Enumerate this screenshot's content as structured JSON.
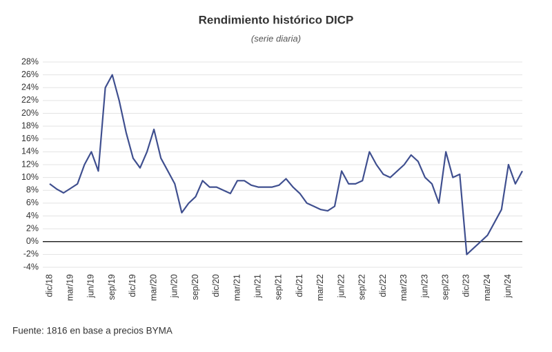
{
  "chart_data": {
    "type": "line",
    "title": "Rendimiento histórico DICP",
    "subtitle": "(serie diaria)",
    "source": "Fuente: 1816 en base a precios BYMA",
    "categories": [
      "dic/18",
      null,
      null,
      "mar/19",
      null,
      null,
      "jun/19",
      null,
      null,
      "sep/19",
      null,
      null,
      "dic/19",
      null,
      null,
      "mar/20",
      null,
      null,
      "jun/20",
      null,
      null,
      "sep/20",
      null,
      null,
      "dic/20",
      null,
      null,
      "mar/21",
      null,
      null,
      "jun/21",
      null,
      null,
      "sep/21",
      null,
      null,
      "dic/21",
      null,
      null,
      "mar/22",
      null,
      null,
      "jun/22",
      null,
      null,
      "sep/22",
      null,
      null,
      "dic/22",
      null,
      null,
      "mar/23",
      null,
      null,
      "jun/23",
      null,
      null,
      "sep/23",
      null,
      null,
      "dic/23",
      null,
      null,
      "mar/24",
      null,
      null,
      "jun/24",
      null,
      null
    ],
    "series": [
      {
        "name": "DICP",
        "color": "#3f4f8f",
        "values": [
          9,
          8.2,
          7.6,
          8.3,
          9,
          12,
          14,
          11,
          24,
          26,
          22,
          17,
          13,
          11.5,
          14,
          17.5,
          13,
          11,
          9,
          4.5,
          6,
          7,
          9.5,
          8.5,
          8.5,
          8,
          7.5,
          9.5,
          9.5,
          8.8,
          8.5,
          8.5,
          8.5,
          8.8,
          9.8,
          8.5,
          7.5,
          6,
          5.5,
          5,
          4.8,
          5.5,
          11,
          9,
          9,
          9.5,
          14,
          12,
          10.5,
          10,
          11,
          12,
          13.5,
          12.5,
          10,
          9,
          6,
          14,
          10,
          10.5,
          -2,
          -1,
          0,
          1,
          3,
          5,
          12,
          9,
          11
        ]
      }
    ],
    "ylim": [
      -4,
      28
    ],
    "yticks": [
      {
        "value": -4,
        "label": "-4%"
      },
      {
        "value": -2,
        "label": "-2%"
      },
      {
        "value": 0,
        "label": "0%"
      },
      {
        "value": 2,
        "label": "2%"
      },
      {
        "value": 4,
        "label": "4%"
      },
      {
        "value": 6,
        "label": "6%"
      },
      {
        "value": 8,
        "label": "8%"
      },
      {
        "value": 10,
        "label": "10%"
      },
      {
        "value": 12,
        "label": "12%"
      },
      {
        "value": 14,
        "label": "14%"
      },
      {
        "value": 16,
        "label": "16%"
      },
      {
        "value": 18,
        "label": "18%"
      },
      {
        "value": 20,
        "label": "20%"
      },
      {
        "value": 22,
        "label": "22%"
      },
      {
        "value": 24,
        "label": "24%"
      },
      {
        "value": 26,
        "label": "26%"
      },
      {
        "value": 28,
        "label": "28%"
      }
    ],
    "grid": true
  }
}
